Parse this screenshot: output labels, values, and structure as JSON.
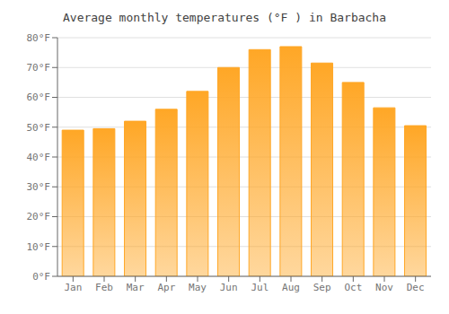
{
  "chart_data": {
    "type": "bar",
    "title": "Average monthly temperatures (°F ) in Barbacha",
    "categories": [
      "Jan",
      "Feb",
      "Mar",
      "Apr",
      "May",
      "Jun",
      "Jul",
      "Aug",
      "Sep",
      "Oct",
      "Nov",
      "Dec"
    ],
    "values": [
      49,
      49.5,
      52,
      56,
      62,
      70,
      76,
      77,
      71.5,
      65,
      56.5,
      50.5
    ],
    "color": "#FFA726",
    "ylim": [
      0,
      80
    ],
    "yticks": [
      {
        "value": 0,
        "label": "0°F"
      },
      {
        "value": 10,
        "label": "10°F"
      },
      {
        "value": 20,
        "label": "20°F"
      },
      {
        "value": 30,
        "label": "30°F"
      },
      {
        "value": 40,
        "label": "40°F"
      },
      {
        "value": 50,
        "label": "50°F"
      },
      {
        "value": 60,
        "label": "60°F"
      },
      {
        "value": 70,
        "label": "70°F"
      },
      {
        "value": 80,
        "label": "80°F"
      }
    ],
    "grid": true
  }
}
